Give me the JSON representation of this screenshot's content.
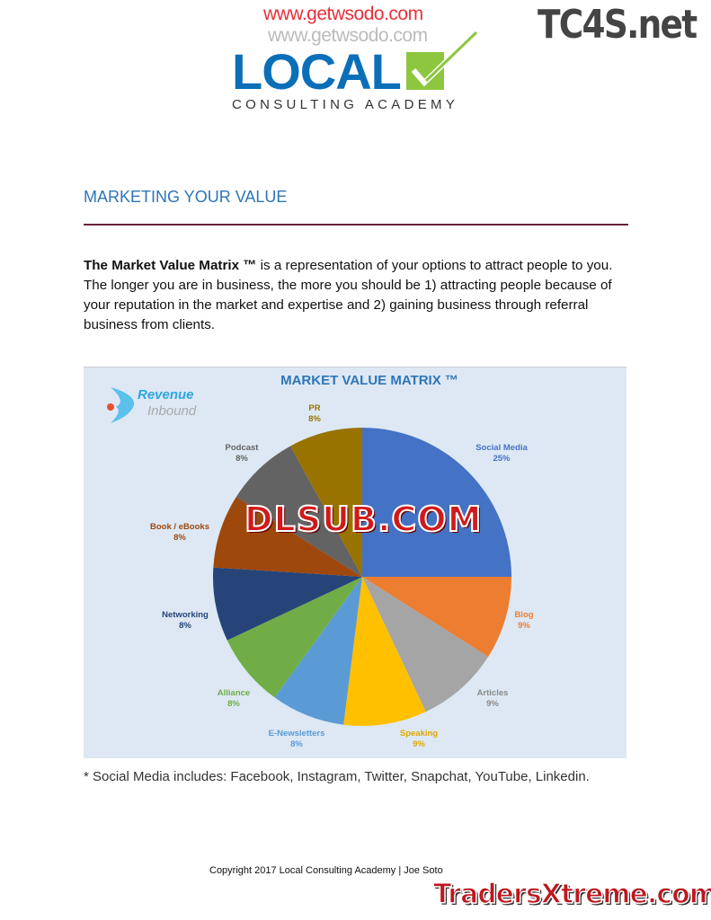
{
  "watermarks": {
    "top": "www.getwsodo.com",
    "top_right": "TC4S.net",
    "center": "DLSUB.COM",
    "bottom_right": "TradersXtreme.com"
  },
  "logo": {
    "main": "LOCAL",
    "sub": "CONSULTING ACADEMY"
  },
  "heading": "MARKETING YOUR VALUE",
  "paragraph": {
    "bold": "The Market Value Matrix ™",
    "rest": " is a representation of your options to attract people to you. The longer you are in business, the more you should be 1) attracting people because of your reputation in the market and expertise and 2) gaining business through referral business from clients."
  },
  "chart_logo": {
    "line1": "Revenue",
    "line2": "Inbound"
  },
  "chart_data": {
    "type": "pie",
    "title": "MARKET VALUE MATRIX ™",
    "start": "top, clockwise",
    "slices": [
      {
        "label": "Social Media",
        "value": 25,
        "pct": "25%",
        "color": "#4472C4"
      },
      {
        "label": "Blog",
        "value": 9,
        "pct": "9%",
        "color": "#ED7D31"
      },
      {
        "label": "Articles",
        "value": 9,
        "pct": "9%",
        "color": "#A5A5A5"
      },
      {
        "label": "Speaking",
        "value": 9,
        "pct": "9%",
        "color": "#FFC000"
      },
      {
        "label": "E-Newsletters",
        "value": 8,
        "pct": "8%",
        "color": "#5B9BD5"
      },
      {
        "label": "Alliance",
        "value": 8,
        "pct": "8%",
        "color": "#70AD47"
      },
      {
        "label": "Networking",
        "value": 8,
        "pct": "8%",
        "color": "#264478"
      },
      {
        "label": "Book / eBooks",
        "value": 8,
        "pct": "8%",
        "color": "#9E480E"
      },
      {
        "label": "Podcast",
        "value": 8,
        "pct": "8%",
        "color": "#636363"
      },
      {
        "label": "PR",
        "value": 8,
        "pct": "8%",
        "color": "#997300"
      }
    ]
  },
  "footnote": "* Social Media includes: Facebook, Instagram, Twitter, Snapchat, YouTube, Linkedin.",
  "copyright": "Copyright 2017 Local Consulting Academy | Joe Soto"
}
